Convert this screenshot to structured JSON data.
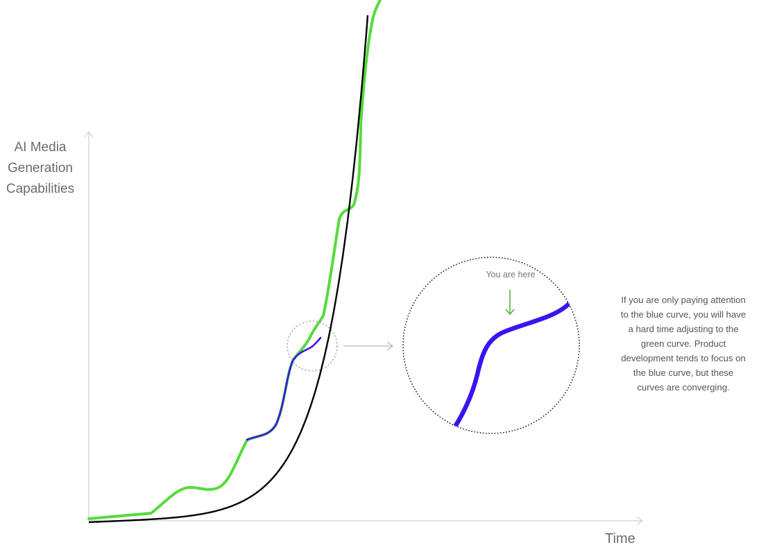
{
  "axes": {
    "y_label_lines": [
      "AI Media",
      "Generation",
      "Capabilities"
    ],
    "x_label": "Time"
  },
  "zoom": {
    "marker_label": "You are here"
  },
  "annotation": {
    "lines": [
      "If you are only paying attention",
      "to the blue curve, you will have",
      "a hard time adjusting to the",
      "green curve. Product",
      "development tends to focus on",
      "the blue curve, but these",
      "curves are converging."
    ]
  },
  "colors": {
    "green_curve": "#55db3a",
    "blue_curve": "#3b13f0",
    "trend_curve": "#000000",
    "axis": "#d6d6d6",
    "arrow_pointer": "#55b33a"
  }
}
